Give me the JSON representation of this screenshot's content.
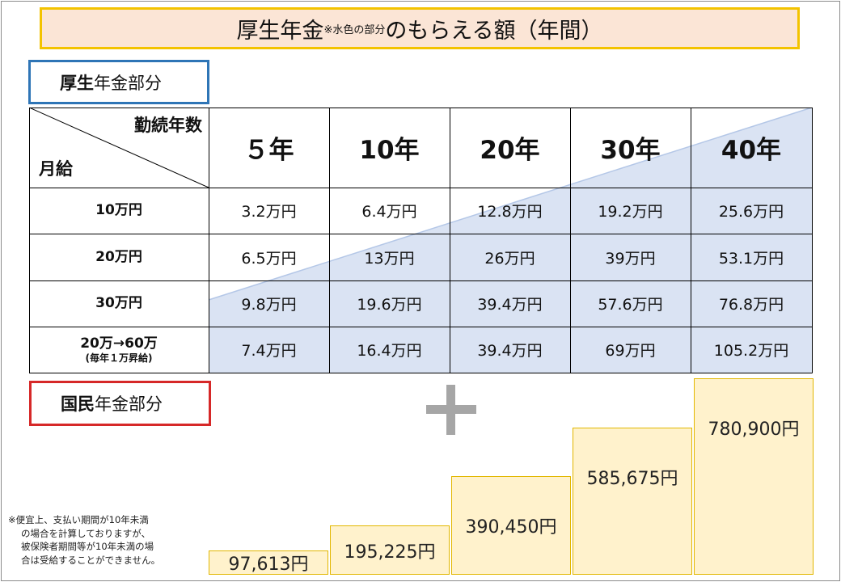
{
  "title": {
    "main_before": "厚生年金",
    "main_small": "※水色の部分",
    "main_after": "のもらえる額（年間）"
  },
  "kosei": {
    "label_bold": "厚生",
    "label_rest": "年金部分"
  },
  "table": {
    "corner_top": "勤続年数",
    "corner_bottom": "月給",
    "columns": [
      "５年",
      "10年",
      "20年",
      "30年",
      "40年"
    ],
    "rows": [
      {
        "label": "10万円",
        "sub": "",
        "values": [
          "3.2万円",
          "6.4万円",
          "12.8万円",
          "19.2万円",
          "25.6万円"
        ]
      },
      {
        "label": "20万円",
        "sub": "",
        "values": [
          "6.5万円",
          "13万円",
          "26万円",
          "39万円",
          "53.1万円"
        ]
      },
      {
        "label": "30万円",
        "sub": "",
        "values": [
          "9.8万円",
          "19.6万円",
          "39.4万円",
          "57.6万円",
          "76.8万円"
        ]
      },
      {
        "label": "20万→60万",
        "sub": "(毎年１万昇給)",
        "values": [
          "7.4万円",
          "16.4万円",
          "39.4万円",
          "69万円",
          "105.2万円"
        ]
      }
    ],
    "highlight_color": "#dae3f3"
  },
  "kokumin": {
    "label_bold": "国民",
    "label_rest": "年金部分"
  },
  "plus_icon": "plus-icon",
  "chart_data": {
    "type": "bar",
    "categories": [
      "５年",
      "10年",
      "20年",
      "30年",
      "40年"
    ],
    "values": [
      97613,
      195225,
      390450,
      585675,
      780900
    ],
    "labels": [
      "97,613円",
      "195,225円",
      "390,450円",
      "585,675円",
      "780,900円"
    ],
    "bar_color": "#fff2cc",
    "border_color": "#e2b700"
  },
  "note": {
    "lines": [
      "※便宜上、支払い期間が10年未満",
      "の場合を計算しておりますが、",
      "被保険者期間等が10年未満の場",
      "合は受給することができません。"
    ]
  }
}
